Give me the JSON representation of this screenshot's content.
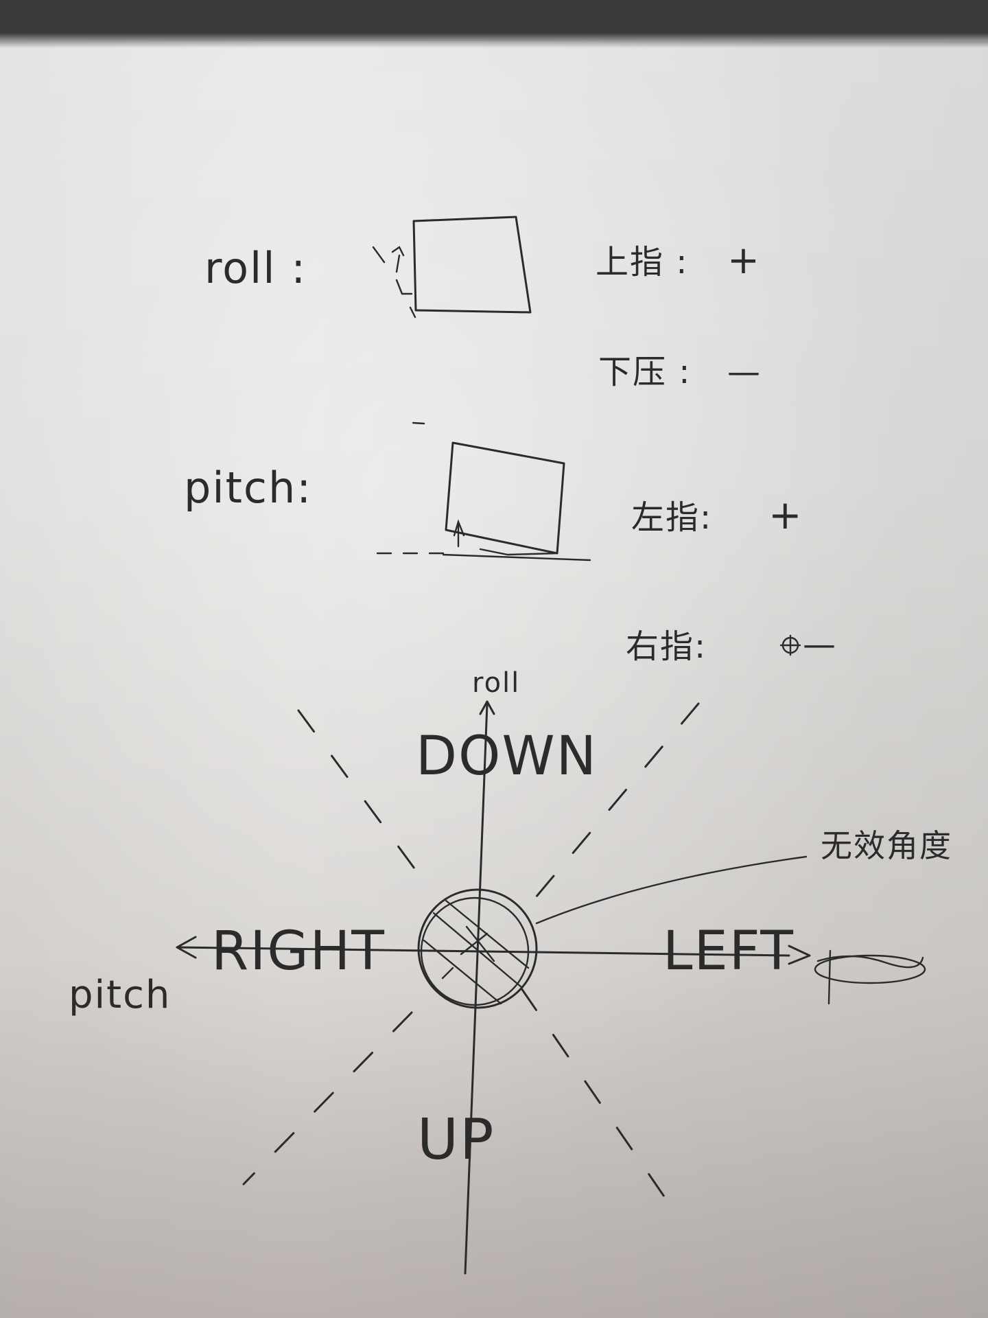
{
  "roll_section": {
    "label": "roll :",
    "rules": [
      {
        "text": "上指 :",
        "sign": "+"
      },
      {
        "text": "下压 :",
        "sign": "—"
      }
    ]
  },
  "pitch_section": {
    "label": "pitch:",
    "rules": [
      {
        "text": "左指:",
        "sign": "+"
      },
      {
        "text": "右指:",
        "sign": "—"
      }
    ]
  },
  "axes": {
    "vertical_axis_label": "roll",
    "horizontal_axis_label": "pitch",
    "directions": {
      "top": "DOWN",
      "bottom": "UP",
      "left": "RIGHT",
      "right": "LEFT"
    }
  },
  "center_zone": {
    "label": "无效角度"
  },
  "colors": {
    "ink": "#2b2b2b",
    "paper": "#e6e5e3"
  }
}
